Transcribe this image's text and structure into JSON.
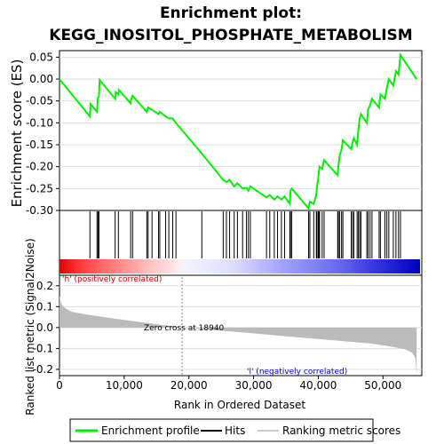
{
  "chart_data": {
    "type": "line",
    "title_line1": "Enrichment plot:",
    "title_line2": "KEGG_INOSITOL_PHOSPHATE_METABOLISM",
    "es_panel": {
      "ylabel": "Enrichment score (ES)",
      "ylim": [
        -0.3,
        0.065
      ],
      "yticks": [
        "0.05",
        "0.00",
        "-0.05",
        "-0.10",
        "-0.15",
        "-0.20",
        "-0.25",
        "-0.30"
      ],
      "ytick_values": [
        0.05,
        0.0,
        -0.05,
        -0.1,
        -0.15,
        -0.2,
        -0.25,
        -0.3
      ],
      "series_name": "Enrichment profile",
      "line_color": "#00ee00",
      "points": [
        [
          0,
          0.0
        ],
        [
          4700,
          -0.085
        ],
        [
          4800,
          -0.057
        ],
        [
          5800,
          -0.075
        ],
        [
          5900,
          -0.045
        ],
        [
          6100,
          -0.04
        ],
        [
          6200,
          -0.002
        ],
        [
          8600,
          -0.045
        ],
        [
          8700,
          -0.03
        ],
        [
          9100,
          -0.035
        ],
        [
          9200,
          -0.025
        ],
        [
          11000,
          -0.055
        ],
        [
          11100,
          -0.045
        ],
        [
          11300,
          -0.038
        ],
        [
          13500,
          -0.075
        ],
        [
          13700,
          -0.065
        ],
        [
          14300,
          -0.07
        ],
        [
          15300,
          -0.08
        ],
        [
          15500,
          -0.075
        ],
        [
          16400,
          -0.085
        ],
        [
          16900,
          -0.09
        ],
        [
          17500,
          -0.09
        ],
        [
          18000,
          -0.1
        ],
        [
          22000,
          -0.17
        ],
        [
          25300,
          -0.23
        ],
        [
          25800,
          -0.235
        ],
        [
          26300,
          -0.23
        ],
        [
          27000,
          -0.245
        ],
        [
          27500,
          -0.238
        ],
        [
          28300,
          -0.25
        ],
        [
          28900,
          -0.248
        ],
        [
          29200,
          -0.255
        ],
        [
          29500,
          -0.245
        ],
        [
          32000,
          -0.27
        ],
        [
          32500,
          -0.265
        ],
        [
          33200,
          -0.275
        ],
        [
          33700,
          -0.268
        ],
        [
          34300,
          -0.275
        ],
        [
          34800,
          -0.268
        ],
        [
          35600,
          -0.285
        ],
        [
          35700,
          -0.255
        ],
        [
          35900,
          -0.25
        ],
        [
          38500,
          -0.295
        ],
        [
          38700,
          -0.28
        ],
        [
          39300,
          -0.285
        ],
        [
          39700,
          -0.265
        ],
        [
          39800,
          -0.245
        ],
        [
          40000,
          -0.225
        ],
        [
          40100,
          -0.21
        ],
        [
          40200,
          -0.2
        ],
        [
          40600,
          -0.205
        ],
        [
          40900,
          -0.185
        ],
        [
          43000,
          -0.22
        ],
        [
          43100,
          -0.2
        ],
        [
          43300,
          -0.175
        ],
        [
          43600,
          -0.16
        ],
        [
          43800,
          -0.14
        ],
        [
          45100,
          -0.16
        ],
        [
          45300,
          -0.145
        ],
        [
          45500,
          -0.135
        ],
        [
          46000,
          -0.15
        ],
        [
          46200,
          -0.115
        ],
        [
          46400,
          -0.09
        ],
        [
          46600,
          -0.08
        ],
        [
          47500,
          -0.1
        ],
        [
          47700,
          -0.07
        ],
        [
          48000,
          -0.06
        ],
        [
          48300,
          -0.045
        ],
        [
          49400,
          -0.065
        ],
        [
          49600,
          -0.035
        ],
        [
          50300,
          -0.045
        ],
        [
          50600,
          -0.02
        ],
        [
          50900,
          0.0
        ],
        [
          51600,
          -0.015
        ],
        [
          52000,
          0.018
        ],
        [
          52400,
          0.01
        ],
        [
          52700,
          0.055
        ],
        [
          55200,
          0.0
        ]
      ]
    },
    "hits_panel": {
      "series_name": "Hits",
      "hit_positions": [
        4700,
        5800,
        5950,
        6100,
        8600,
        9100,
        11000,
        11300,
        13500,
        13700,
        14300,
        15300,
        15500,
        16400,
        16900,
        17500,
        18000,
        22000,
        25300,
        25800,
        26300,
        27000,
        27500,
        28300,
        28900,
        29200,
        29500,
        32000,
        32500,
        33200,
        33700,
        34300,
        34800,
        35600,
        35700,
        35900,
        38500,
        38700,
        39300,
        39700,
        39800,
        40000,
        40100,
        40200,
        40600,
        40900,
        43000,
        43100,
        43300,
        43600,
        43800,
        45100,
        45300,
        45500,
        46000,
        46200,
        46400,
        46600,
        47500,
        47700,
        48000,
        48300,
        49400,
        49600,
        50300,
        50600,
        50900,
        51600,
        52000,
        52400,
        52700
      ]
    },
    "metric_panel": {
      "ylabel": "Ranked list metric (Signal2Noise)",
      "ylim": [
        -0.23,
        0.25
      ],
      "yticks": [
        "0.2",
        "0.1",
        "0.0",
        "-0.1",
        "-0.2"
      ],
      "ytick_values": [
        0.2,
        0.1,
        0.0,
        -0.1,
        -0.2
      ],
      "series_name": "Ranking metric scores",
      "fill_color": "#bbbbbb",
      "curve": [
        [
          0,
          0.15
        ],
        [
          300,
          0.11
        ],
        [
          1000,
          0.09
        ],
        [
          2000,
          0.075
        ],
        [
          4000,
          0.063
        ],
        [
          8000,
          0.045
        ],
        [
          12000,
          0.028
        ],
        [
          15000,
          0.016
        ],
        [
          18940,
          0.0
        ],
        [
          25000,
          -0.015
        ],
        [
          30000,
          -0.028
        ],
        [
          35000,
          -0.042
        ],
        [
          40000,
          -0.055
        ],
        [
          45000,
          -0.068
        ],
        [
          48000,
          -0.076
        ],
        [
          50000,
          -0.085
        ],
        [
          52000,
          -0.095
        ],
        [
          53500,
          -0.105
        ],
        [
          54500,
          -0.12
        ],
        [
          55000,
          -0.145
        ],
        [
          55200,
          -0.22
        ]
      ],
      "label_pos": "'h' (positively correlated)",
      "label_neg": "'l' (negatively correlated)",
      "zero_cross_label": "Zero cross at 18940",
      "zero_cross": 18940
    },
    "x_axis": {
      "xlabel": "Rank in Ordered Dataset",
      "xlim": [
        0,
        56000
      ],
      "xticks": [
        "0",
        "10,000",
        "20,000",
        "30,000",
        "40,000",
        "50,000"
      ],
      "xtick_values": [
        0,
        10000,
        20000,
        30000,
        40000,
        50000
      ],
      "n_genes": 55200
    },
    "legend": {
      "placement": "bottom",
      "entries": [
        "Enrichment profile",
        "Hits",
        "Ranking metric scores"
      ]
    }
  }
}
